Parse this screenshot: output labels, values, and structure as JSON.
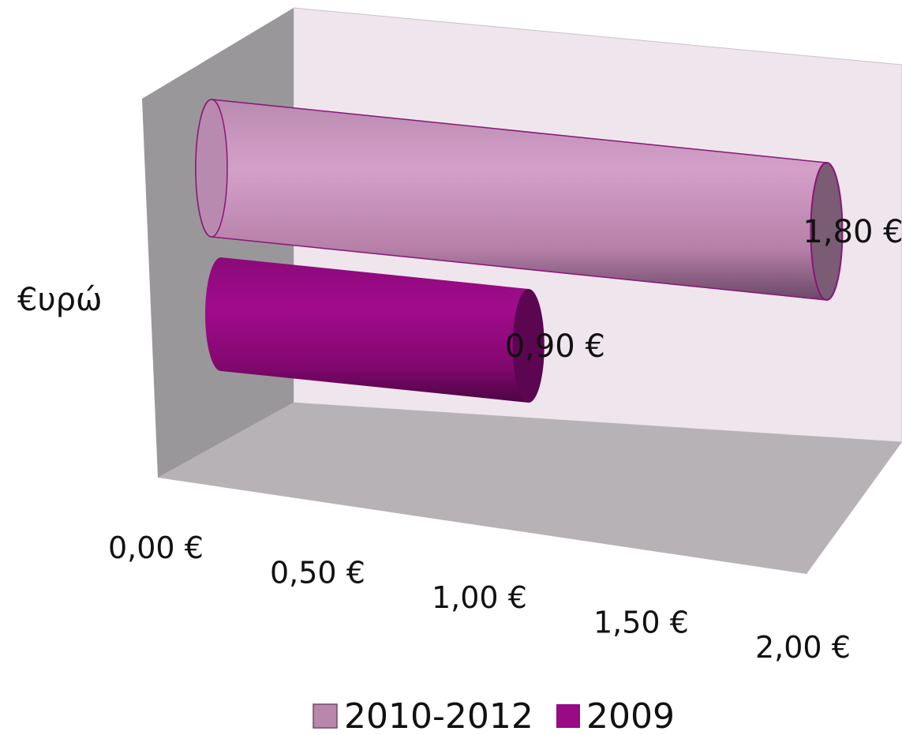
{
  "chart_data": {
    "type": "bar",
    "orientation": "horizontal",
    "style": "3d-cylinder",
    "title": "",
    "ylabel": "€υρώ",
    "xlim": [
      0,
      2
    ],
    "ticks": [
      {
        "value": 0.0,
        "label": "0,00 €"
      },
      {
        "value": 0.5,
        "label": "0,50 €"
      },
      {
        "value": 1.0,
        "label": "1,00 €"
      },
      {
        "value": 1.5,
        "label": "1,50 €"
      },
      {
        "value": 2.0,
        "label": "2,00 €"
      }
    ],
    "series": [
      {
        "name": "2010-2012",
        "value": 1.8,
        "label": "1,80 €",
        "color": "#d096c3"
      },
      {
        "name": "2009",
        "value": 0.9,
        "label": "0,90 €",
        "color": "#980b85"
      }
    ],
    "legend_position": "bottom",
    "grid": false
  }
}
